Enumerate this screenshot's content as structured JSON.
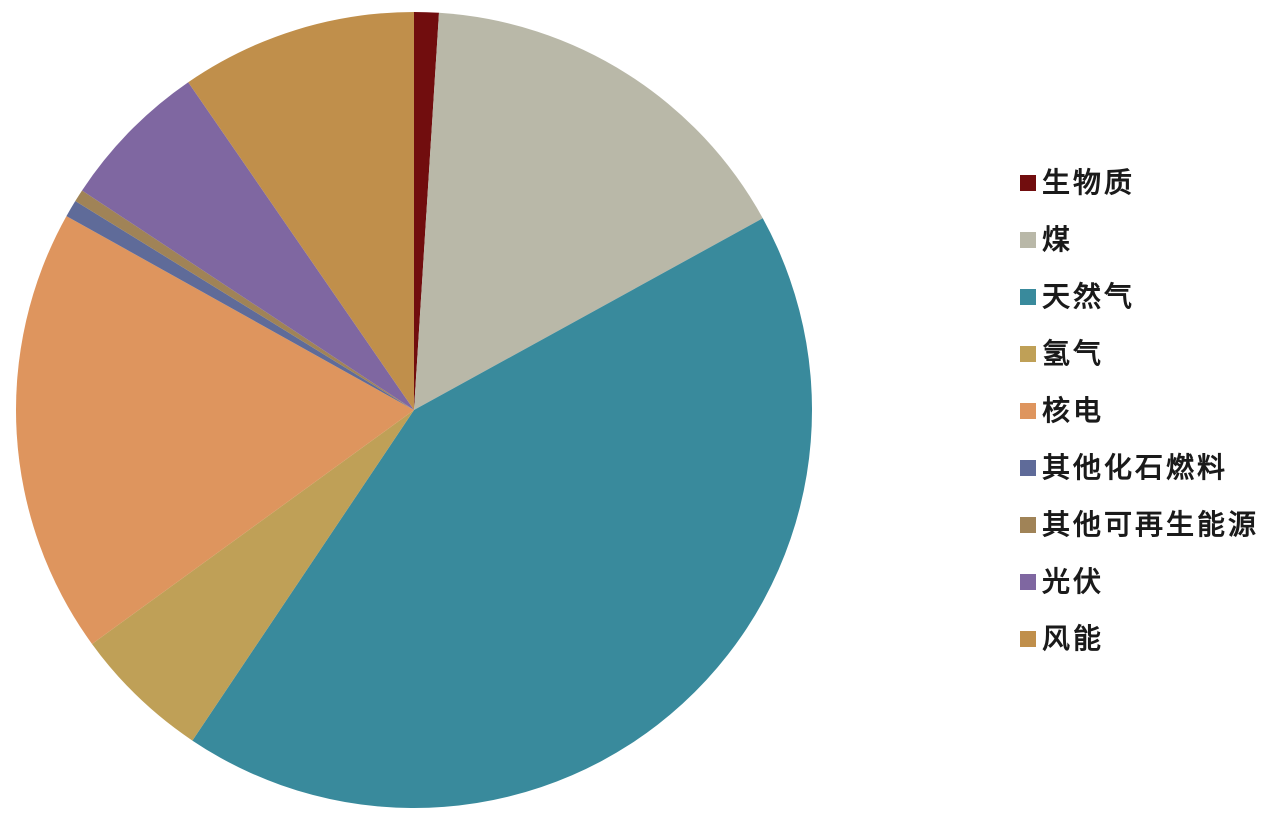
{
  "chart_data": {
    "type": "pie",
    "title": "",
    "legend_position": "right",
    "direction": "clockwise",
    "start_angle_deg": 0,
    "labels": [
      "生物质",
      "煤",
      "天然气",
      "氢气",
      "核电",
      "其他化石燃料",
      "其他可再生能源",
      "光伏",
      "风能"
    ],
    "values": [
      1.0,
      16.0,
      42.4,
      5.6,
      18.1,
      0.7,
      0.5,
      6.1,
      9.6
    ],
    "unit": "percent",
    "colors": [
      "#710d0e",
      "#b9b8a8",
      "#398a9c",
      "#bfa057",
      "#de955e",
      "#5f6b99",
      "#a08357",
      "#7f67a1",
      "#c08f4b"
    ],
    "background_color": "#ffffff",
    "legend_text_color": "#1a1a1a"
  }
}
